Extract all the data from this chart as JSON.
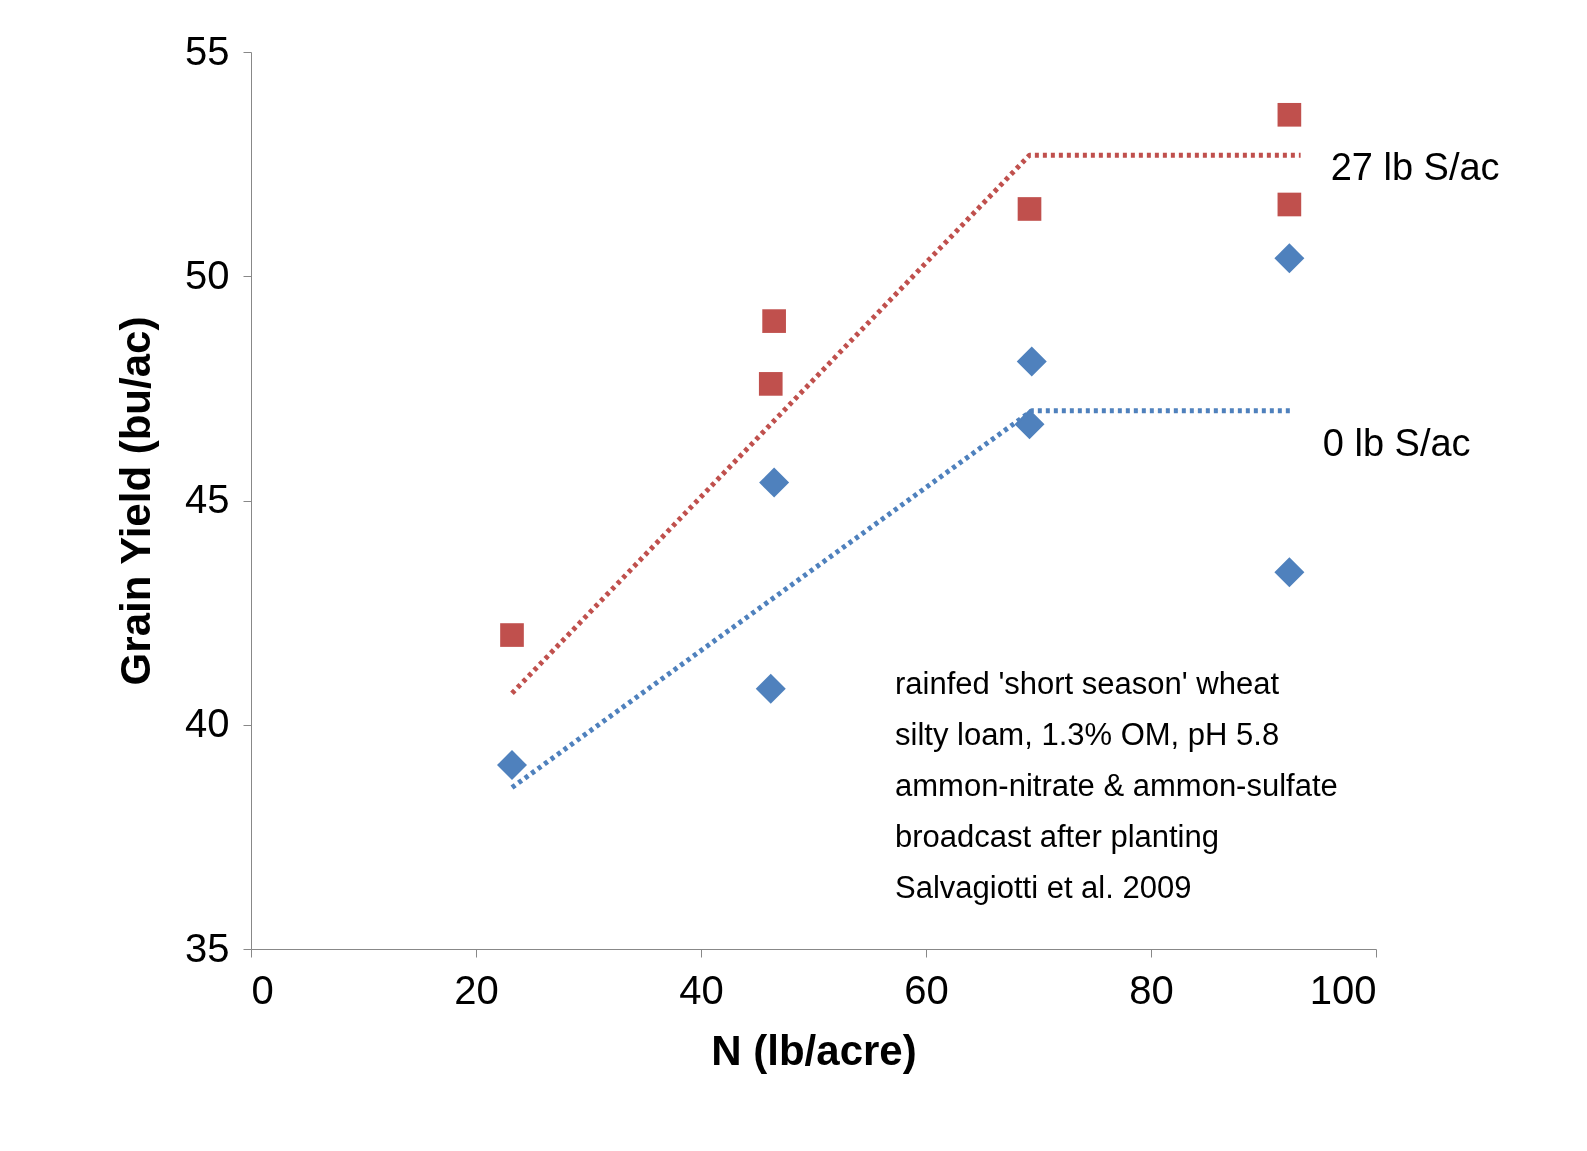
{
  "chart_data": {
    "type": "scatter",
    "xlabel": "N (lb/acre)",
    "ylabel": "Grain Yield (bu/ac)",
    "xlim": [
      0,
      100
    ],
    "xticks": [
      0,
      20,
      40,
      60,
      80,
      100
    ],
    "ylim": [
      35,
      55
    ],
    "yticks": [
      35,
      40,
      45,
      50,
      55
    ],
    "grid": false,
    "series": [
      {
        "marker": "square",
        "color": "#c0504d",
        "x": [
          23.2,
          46.5,
          46.2,
          69.2,
          92.3,
          92.3
        ],
        "values": [
          42.0,
          49.0,
          47.6,
          51.5,
          53.6,
          51.6
        ]
      },
      {
        "marker": "diamond",
        "color": "#4f81bd",
        "x": [
          23.2,
          46.5,
          46.2,
          69.4,
          69.2,
          92.3,
          92.3
        ],
        "values": [
          39.1,
          45.4,
          40.8,
          48.1,
          46.7,
          50.4,
          43.4
        ]
      },
      {
        "type": "line",
        "name": "27 lb S/ac",
        "line_style": "dotted",
        "color": "#c0504d",
        "x": [
          23.2,
          69.2,
          93.3
        ],
        "values": [
          40.7,
          52.7,
          52.7
        ]
      },
      {
        "type": "line",
        "name": "0 lb S/ac",
        "line_style": "dotted",
        "color": "#4f81bd",
        "x": [
          23.2,
          69.4,
          92.6
        ],
        "values": [
          38.6,
          47.0,
          47.0
        ]
      }
    ],
    "annotations": [
      "rainfed 'short season' wheat",
      "silty loam, 1.3% OM, pH  5.8",
      "ammon-nitrate & ammon-sulfate",
      "broadcast after planting",
      "Salvagiotti et al. 2009"
    ]
  }
}
